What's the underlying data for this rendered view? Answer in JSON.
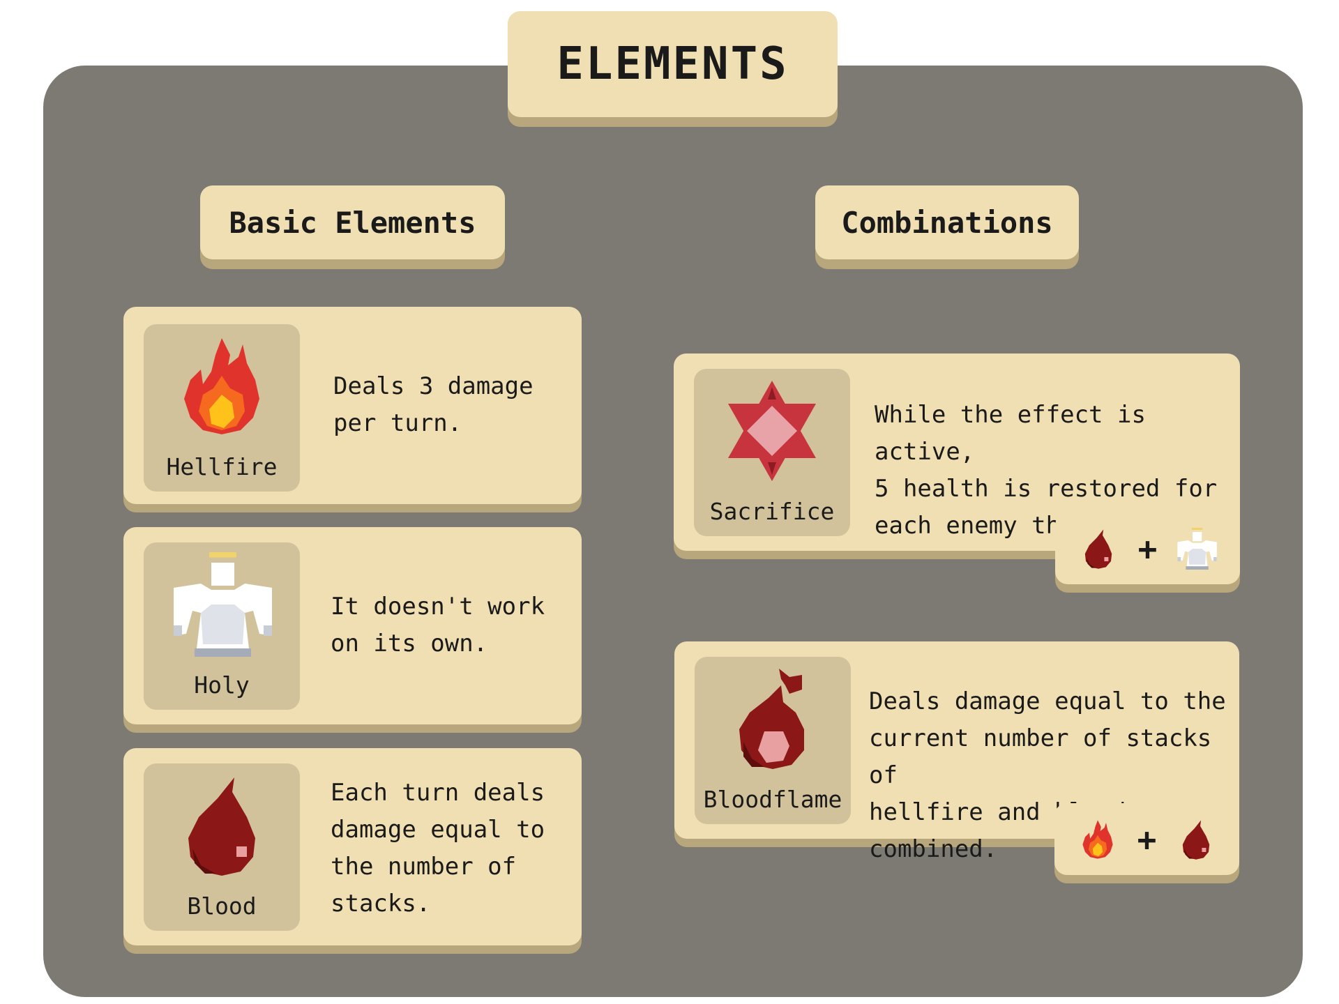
{
  "title": "ELEMENTS",
  "sections": {
    "basic": "Basic Elements",
    "combinations": "Combinations"
  },
  "basic_elements": [
    {
      "name": "Hellfire",
      "icon": "flame-icon",
      "description": "Deals 3 damage\nper turn."
    },
    {
      "name": "Holy",
      "icon": "angel-icon",
      "description": "It doesn't work\non its own."
    },
    {
      "name": "Blood",
      "icon": "blood-drop-icon",
      "description": "Each turn deals\ndamage equal to\nthe number of\nstacks."
    }
  ],
  "combinations": [
    {
      "name": "Sacrifice",
      "icon": "hexagram-icon",
      "description": "While the effect is active,\n5 health is restored for\neach enemy that dies.",
      "recipe": [
        "blood-drop-icon",
        "+",
        "angel-icon"
      ]
    },
    {
      "name": "Bloodflame",
      "icon": "bloodflame-icon",
      "description": "Deals damage equal to the\ncurrent number of stacks of\nhellfire and blood combined.",
      "recipe": [
        "flame-icon",
        "+",
        "blood-drop-icon"
      ]
    }
  ],
  "colors": {
    "panel": "#7d7a73",
    "card": "#f0dfb3",
    "card_shadow": "#b8a67c",
    "icon_box": "#d1c29b"
  }
}
